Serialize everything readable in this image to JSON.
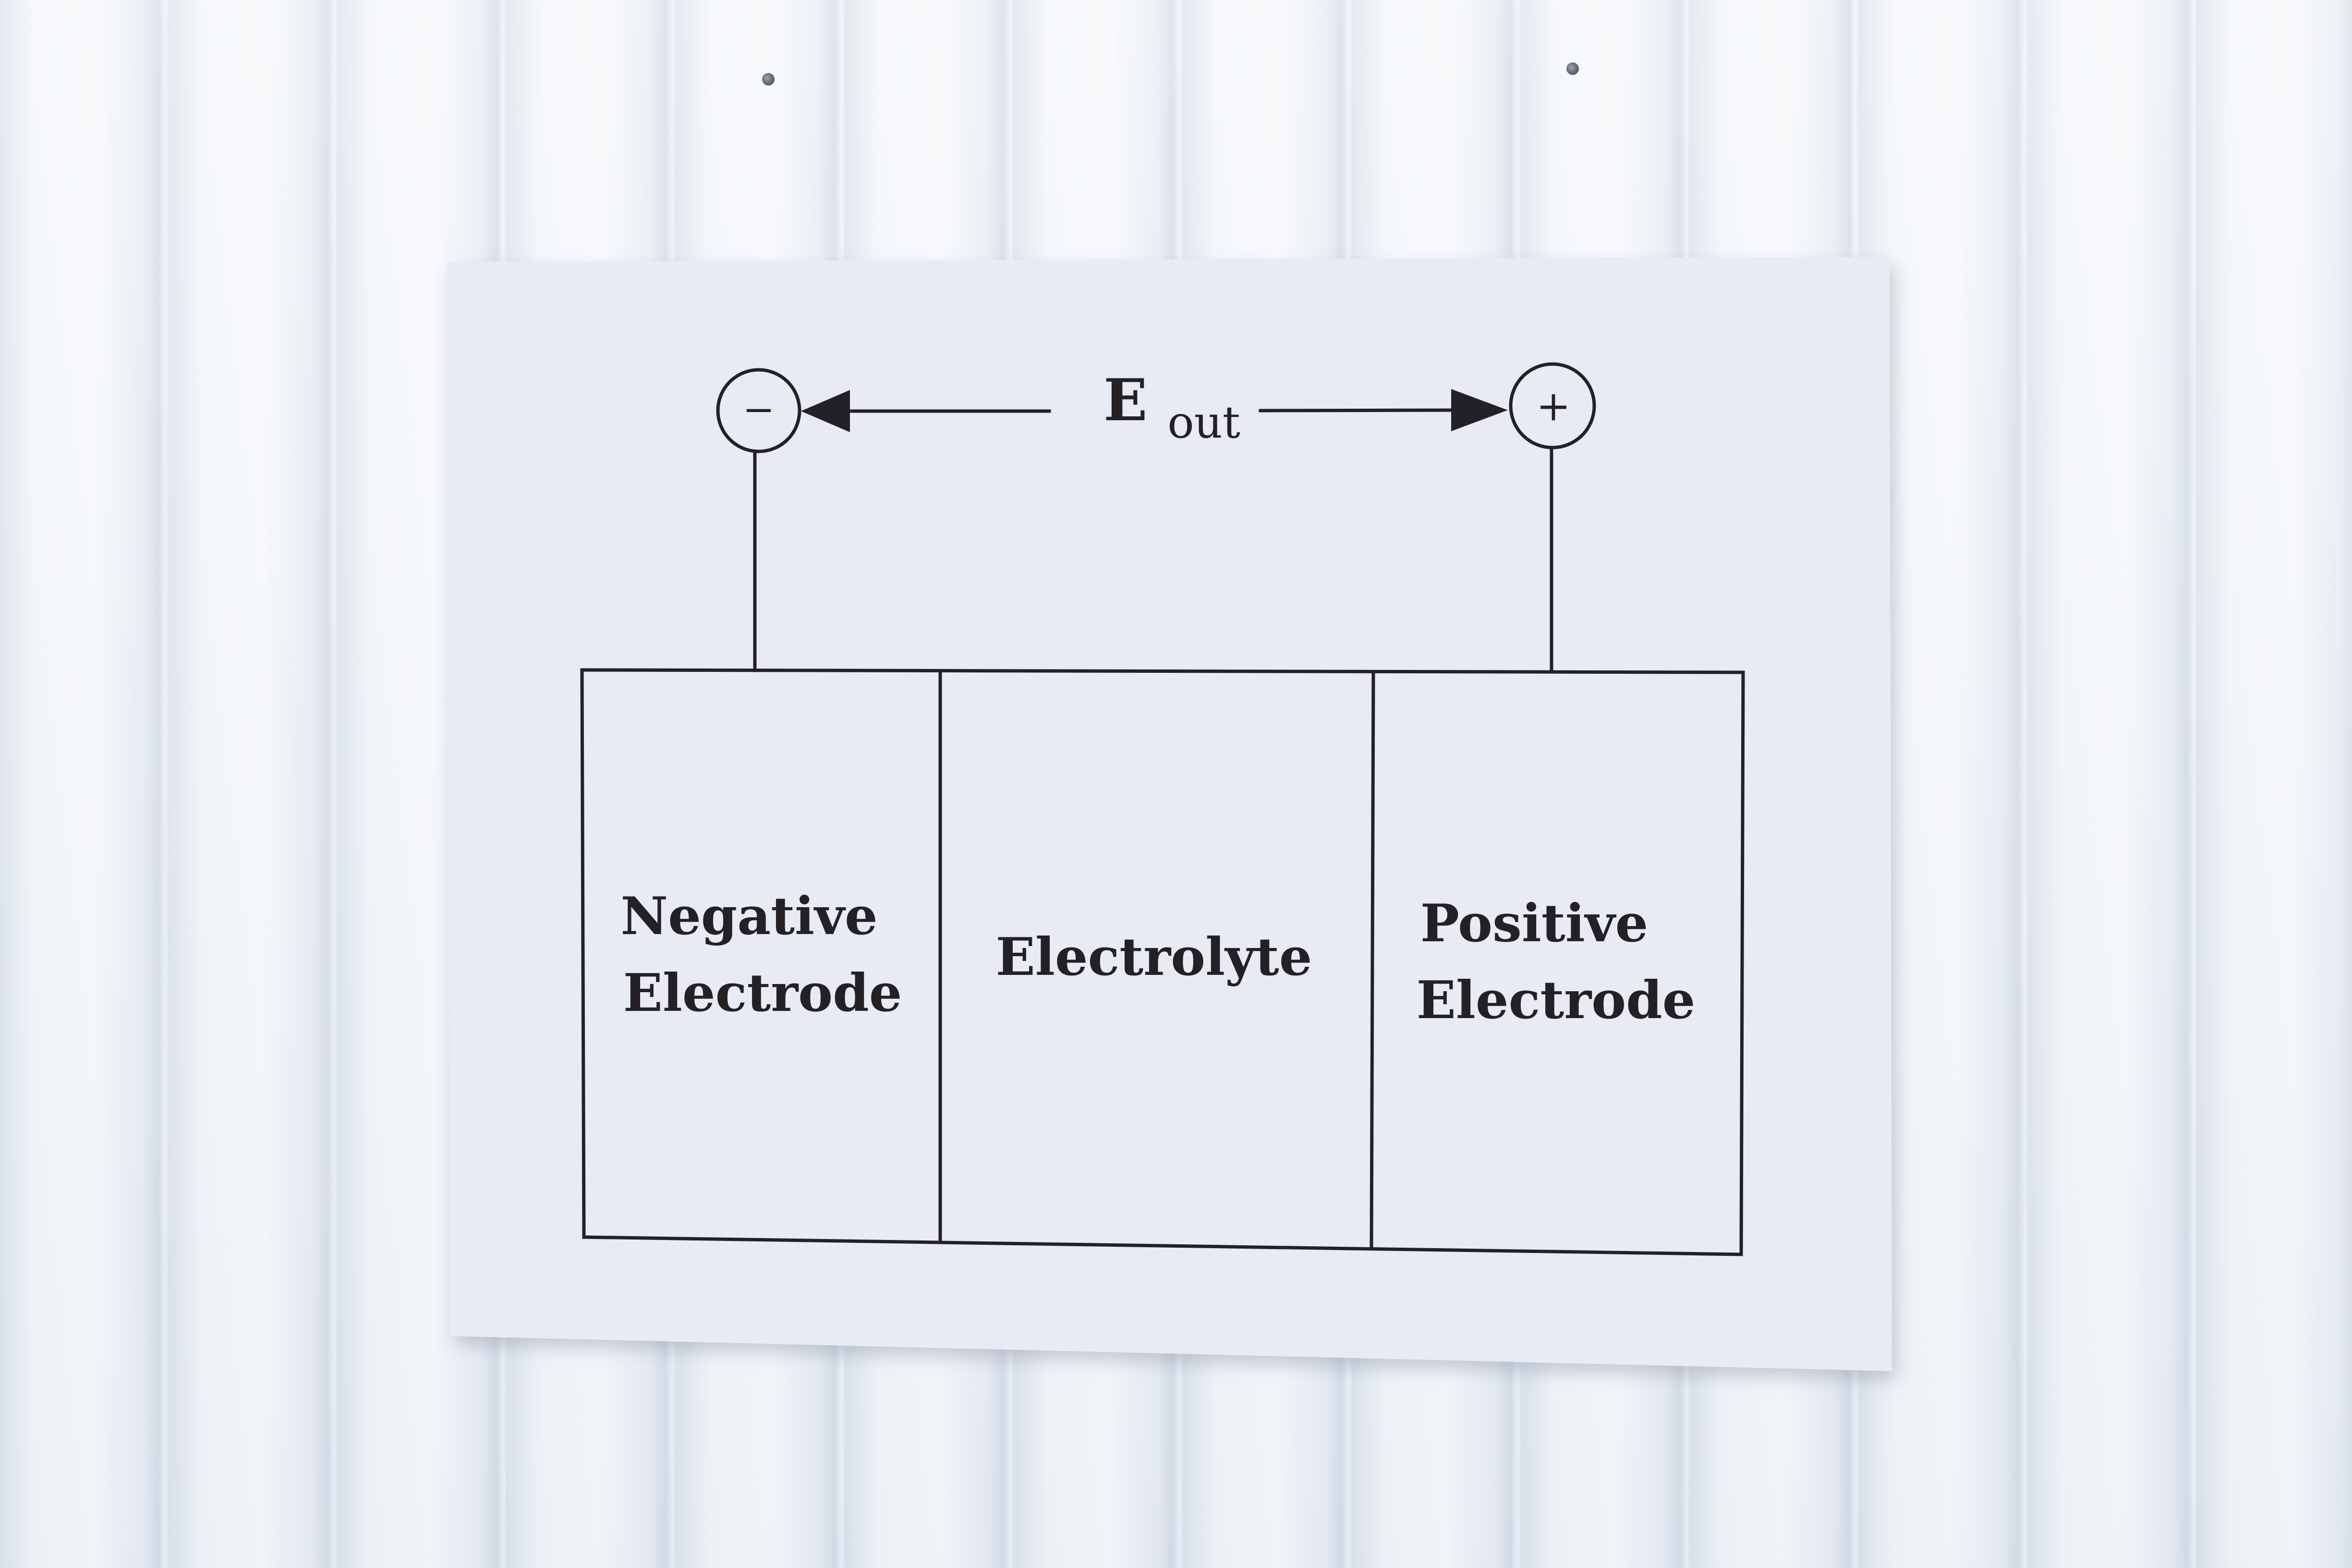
{
  "diagram": {
    "output_label": "E",
    "output_subscript": "out",
    "negative_terminal_symbol": "−",
    "positive_terminal_symbol": "+",
    "negative_electrode_line1": "Negative",
    "negative_electrode_line2": "Electrode",
    "electrolyte_label": "Electrolyte",
    "positive_electrode_line1": "Positive",
    "positive_electrode_line2": "Electrode"
  },
  "colors": {
    "wall": "#e9eef5",
    "poster": "#e8ebf4",
    "ink": "#232125"
  }
}
